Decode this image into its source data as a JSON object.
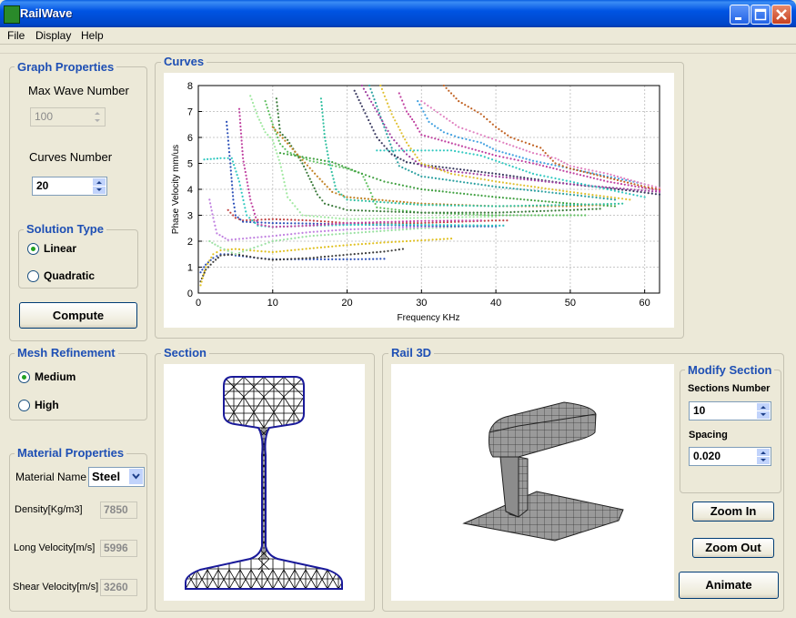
{
  "window": {
    "title": "RailWave"
  },
  "menu": [
    "File",
    "Display",
    "Help"
  ],
  "graph_properties": {
    "title": "Graph Properties",
    "max_wave_label": "Max Wave Number",
    "max_wave_value": "100",
    "curves_label": "Curves Number",
    "curves_value": "20"
  },
  "solution_type": {
    "title": "Solution Type",
    "options": [
      "Linear",
      "Quadratic"
    ],
    "selected": "Linear"
  },
  "compute_label": "Compute",
  "mesh": {
    "title": "Mesh Refinement",
    "options": [
      "Medium",
      "High"
    ],
    "selected": "Medium"
  },
  "material": {
    "title": "Material Properties",
    "name_label": "Material Name",
    "name_value": "Steel",
    "density_label": "Density[Kg/m3]",
    "density_value": "7850",
    "long_label": "Long Velocity[m/s]",
    "long_value": "5996",
    "shear_label": "Shear Velocity[m/s]",
    "shear_value": "3260"
  },
  "curves_group": {
    "title": "Curves"
  },
  "section_group": {
    "title": "Section"
  },
  "rail3d_group": {
    "title": "Rail 3D"
  },
  "modify_section": {
    "title": "Modify Section",
    "sections_label": "Sections Number",
    "sections_value": "10",
    "spacing_label": "Spacing",
    "spacing_value": "0.020"
  },
  "buttons": {
    "zoom_in": "Zoom In",
    "zoom_out": "Zoom Out",
    "animate": "Animate"
  },
  "chart_data": {
    "type": "scatter",
    "xlabel": "Frequency KHz",
    "ylabel": "Phase Velocity mm/us",
    "xlim": [
      0,
      62
    ],
    "ylim": [
      0,
      8
    ],
    "xticks": [
      0,
      10,
      20,
      30,
      40,
      50,
      60
    ],
    "yticks": [
      0,
      1,
      2,
      3,
      4,
      5,
      6,
      7,
      8
    ],
    "grid": true,
    "series": [
      {
        "color": "#2b4fb8",
        "points": [
          [
            0.3,
            0.8
          ],
          [
            1,
            1.1
          ],
          [
            2,
            1.35
          ],
          [
            3,
            1.5
          ],
          [
            4,
            1.5
          ],
          [
            5,
            1.45
          ],
          [
            6,
            1.42
          ],
          [
            8,
            1.35
          ],
          [
            10,
            1.3
          ],
          [
            15,
            1.3
          ],
          [
            20,
            1.3
          ],
          [
            25,
            1.32
          ]
        ]
      },
      {
        "color": "#3a3a3a",
        "points": [
          [
            0.3,
            0.45
          ],
          [
            1,
            0.9
          ],
          [
            2,
            1.2
          ],
          [
            3,
            1.45
          ],
          [
            5,
            1.5
          ],
          [
            8,
            1.35
          ],
          [
            10,
            1.28
          ],
          [
            15,
            1.35
          ],
          [
            20,
            1.48
          ],
          [
            25,
            1.6
          ],
          [
            27.5,
            1.7
          ]
        ]
      },
      {
        "color": "#e0c020",
        "points": [
          [
            0.3,
            0.3
          ],
          [
            1,
            1
          ],
          [
            2,
            1.5
          ],
          [
            3,
            1.65
          ],
          [
            5,
            1.7
          ],
          [
            8,
            1.62
          ],
          [
            10,
            1.58
          ],
          [
            15,
            1.72
          ],
          [
            20,
            1.85
          ],
          [
            25,
            1.95
          ],
          [
            34,
            2.1
          ]
        ]
      },
      {
        "color": "#98e0a0",
        "points": [
          [
            1.5,
            2.0
          ],
          [
            3,
            1.75
          ],
          [
            5,
            1.5
          ],
          [
            8,
            1.8
          ],
          [
            10,
            2.0
          ],
          [
            15,
            2.2
          ],
          [
            20,
            2.3
          ],
          [
            30,
            2.5
          ],
          [
            40,
            2.6
          ]
        ]
      },
      {
        "color": "#c080e0",
        "points": [
          [
            1.5,
            3.6
          ],
          [
            2,
            2.9
          ],
          [
            2.5,
            2.3
          ],
          [
            4,
            2.05
          ],
          [
            6,
            2.1
          ],
          [
            10,
            2.2
          ],
          [
            15,
            2.35
          ],
          [
            20,
            2.45
          ],
          [
            30,
            2.55
          ],
          [
            41,
            2.6
          ]
        ]
      },
      {
        "color": "#c04040",
        "points": [
          [
            4,
            3.2
          ],
          [
            5,
            2.9
          ],
          [
            6,
            2.8
          ],
          [
            10,
            2.85
          ],
          [
            15,
            2.8
          ],
          [
            20,
            2.7
          ],
          [
            30,
            2.7
          ],
          [
            40,
            2.8
          ],
          [
            41.5,
            2.8
          ]
        ]
      },
      {
        "color": "#2b4fb8",
        "points": [
          [
            3.8,
            6.6
          ],
          [
            4.3,
            5.0
          ],
          [
            4.7,
            3.6
          ],
          [
            5,
            3.0
          ],
          [
            6,
            2.75
          ],
          [
            10,
            2.7
          ],
          [
            15,
            2.68
          ],
          [
            20,
            2.65
          ],
          [
            25,
            2.62
          ],
          [
            30,
            2.6
          ],
          [
            35,
            2.58
          ],
          [
            40,
            2.57
          ]
        ]
      },
      {
        "color": "#30c8c0",
        "points": [
          [
            0.8,
            5.15
          ],
          [
            3,
            5.2
          ],
          [
            4.5,
            5.2
          ],
          [
            5.5,
            4.3
          ],
          [
            6.5,
            3.0
          ],
          [
            8,
            2.6
          ],
          [
            10,
            2.55
          ],
          [
            15,
            2.6
          ],
          [
            25,
            2.65
          ],
          [
            35,
            2.62
          ],
          [
            41,
            2.6
          ]
        ]
      },
      {
        "color": "#c040a0",
        "points": [
          [
            5.5,
            7.1
          ],
          [
            6,
            5.2
          ],
          [
            7,
            3.6
          ],
          [
            8,
            2.65
          ],
          [
            10,
            2.55
          ],
          [
            15,
            2.6
          ],
          [
            20,
            2.7
          ],
          [
            30,
            2.78
          ],
          [
            38,
            2.8
          ]
        ]
      },
      {
        "color": "#a0e8a0",
        "points": [
          [
            7,
            7.6
          ],
          [
            8,
            6.8
          ],
          [
            9,
            6.2
          ],
          [
            10,
            5.9
          ],
          [
            11,
            5.0
          ],
          [
            12,
            3.7
          ],
          [
            14,
            3.0
          ],
          [
            20,
            2.85
          ],
          [
            30,
            2.9
          ],
          [
            40,
            2.95
          ]
        ]
      },
      {
        "color": "#60c060",
        "points": [
          [
            9,
            7.4
          ],
          [
            10,
            6.5
          ],
          [
            11,
            5.75
          ],
          [
            12,
            5.45
          ],
          [
            15,
            5.1
          ],
          [
            20,
            4.8
          ],
          [
            22,
            4.6
          ],
          [
            23,
            4.0
          ],
          [
            24,
            3.3
          ],
          [
            30,
            3.1
          ],
          [
            40,
            3.0
          ],
          [
            52,
            3.0
          ]
        ]
      },
      {
        "color": "#3a7a3a",
        "points": [
          [
            10.5,
            7.5
          ],
          [
            11,
            6.2
          ],
          [
            12,
            5.9
          ],
          [
            14,
            5.0
          ],
          [
            15,
            4.4
          ],
          [
            16,
            3.8
          ],
          [
            17,
            3.45
          ],
          [
            20,
            3.2
          ],
          [
            30,
            3.1
          ],
          [
            40,
            3.1
          ],
          [
            50,
            3.2
          ],
          [
            54,
            3.25
          ]
        ]
      },
      {
        "color": "#40a040",
        "points": [
          [
            11,
            5.4
          ],
          [
            14,
            5.25
          ],
          [
            18,
            5.05
          ],
          [
            22,
            4.6
          ],
          [
            25,
            4.3
          ],
          [
            30,
            4.0
          ],
          [
            40,
            3.7
          ],
          [
            50,
            3.45
          ],
          [
            56,
            3.35
          ]
        ]
      },
      {
        "color": "#c08020",
        "points": [
          [
            10,
            6.4
          ],
          [
            13,
            5.45
          ],
          [
            16,
            4.5
          ],
          [
            18,
            3.9
          ],
          [
            20,
            3.7
          ],
          [
            30,
            3.45
          ],
          [
            40,
            3.35
          ],
          [
            50,
            3.35
          ],
          [
            54,
            3.4
          ]
        ]
      },
      {
        "color": "#30c0a0",
        "points": [
          [
            16.5,
            7.5
          ],
          [
            17,
            6.0
          ],
          [
            17.5,
            5.2
          ],
          [
            18.5,
            4.0
          ],
          [
            20,
            3.6
          ],
          [
            30,
            3.4
          ],
          [
            40,
            3.35
          ],
          [
            50,
            3.4
          ],
          [
            57,
            3.45
          ]
        ]
      },
      {
        "color": "#2aa0a0",
        "points": [
          [
            23,
            8
          ],
          [
            24,
            7.2
          ],
          [
            25,
            6.4
          ],
          [
            26,
            5.6
          ],
          [
            27,
            4.9
          ],
          [
            30,
            4.5
          ],
          [
            40,
            4.1
          ],
          [
            50,
            3.8
          ],
          [
            56,
            3.6
          ]
        ]
      },
      {
        "color": "#3a3a60",
        "points": [
          [
            21,
            7.8
          ],
          [
            22,
            7.2
          ],
          [
            24,
            6.0
          ],
          [
            26,
            5.35
          ],
          [
            28,
            5.05
          ],
          [
            30,
            4.95
          ],
          [
            40,
            4.6
          ],
          [
            50,
            4.2
          ],
          [
            58,
            3.95
          ],
          [
            62,
            3.8
          ]
        ]
      },
      {
        "color": "#a040a0",
        "points": [
          [
            22,
            8
          ],
          [
            24,
            7.0
          ],
          [
            26,
            6.0
          ],
          [
            28,
            5.35
          ],
          [
            30,
            4.9
          ],
          [
            34,
            4.7
          ],
          [
            40,
            4.5
          ],
          [
            50,
            4.2
          ],
          [
            62,
            3.9
          ]
        ]
      },
      {
        "color": "#e0c030",
        "points": [
          [
            24.5,
            8
          ],
          [
            26,
            6.9
          ],
          [
            28,
            5.8
          ],
          [
            30,
            5.0
          ],
          [
            34,
            4.6
          ],
          [
            40,
            4.3
          ],
          [
            50,
            3.9
          ],
          [
            58,
            3.6
          ]
        ]
      },
      {
        "color": "#c040a0",
        "points": [
          [
            27,
            7.7
          ],
          [
            28,
            7.0
          ],
          [
            29,
            6.6
          ],
          [
            30,
            6.1
          ],
          [
            35,
            5.7
          ],
          [
            40,
            5.3
          ],
          [
            45,
            5.0
          ],
          [
            50,
            4.65
          ],
          [
            55,
            4.3
          ],
          [
            62,
            3.95
          ]
        ]
      },
      {
        "color": "#30c8c0",
        "points": [
          [
            24,
            5.5
          ],
          [
            28,
            5.5
          ],
          [
            34,
            5.5
          ],
          [
            38,
            5.3
          ],
          [
            40,
            5.1
          ],
          [
            45,
            4.6
          ],
          [
            50,
            4.3
          ],
          [
            55,
            4.0
          ],
          [
            60,
            3.7
          ]
        ]
      },
      {
        "color": "#40a0e0",
        "points": [
          [
            29.5,
            7.4
          ],
          [
            31,
            6.6
          ],
          [
            33,
            6.2
          ],
          [
            35,
            6.0
          ],
          [
            38,
            5.8
          ],
          [
            40,
            5.5
          ],
          [
            45,
            5.1
          ],
          [
            50,
            4.8
          ],
          [
            55,
            4.5
          ],
          [
            60,
            4.2
          ]
        ]
      },
      {
        "color": "#c06020",
        "points": [
          [
            33,
            8
          ],
          [
            35,
            7.4
          ],
          [
            38,
            6.9
          ],
          [
            40,
            6.4
          ],
          [
            42,
            6.0
          ],
          [
            44,
            5.8
          ],
          [
            46,
            5.6
          ],
          [
            48,
            5.0
          ],
          [
            50,
            4.8
          ],
          [
            55,
            4.45
          ],
          [
            60,
            4.1
          ],
          [
            62,
            4.0
          ]
        ]
      },
      {
        "color": "#e080c0",
        "points": [
          [
            30,
            7.4
          ],
          [
            33,
            6.8
          ],
          [
            35,
            6.4
          ],
          [
            38,
            6.1
          ],
          [
            41,
            5.8
          ],
          [
            45,
            5.4
          ],
          [
            48,
            5.2
          ],
          [
            50,
            4.9
          ],
          [
            55,
            4.6
          ],
          [
            60,
            4.2
          ],
          [
            62,
            4.05
          ]
        ]
      }
    ]
  }
}
